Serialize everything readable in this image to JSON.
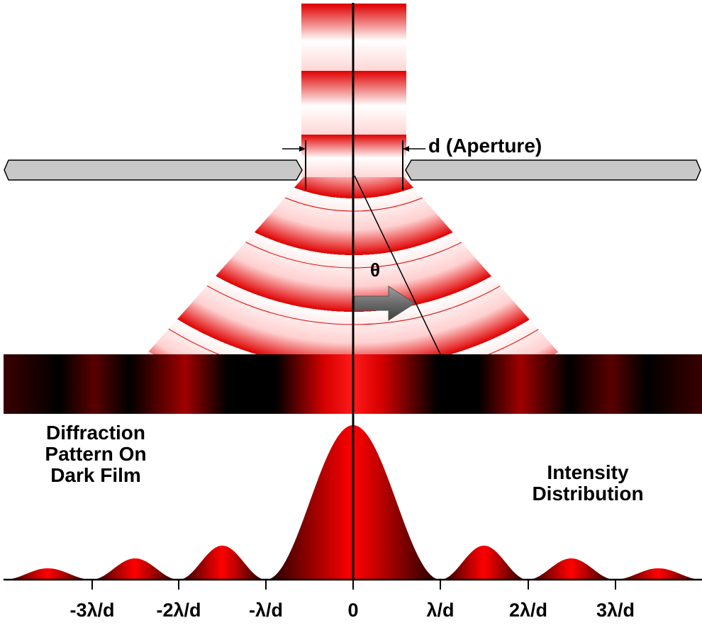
{
  "aperture_label": "d (Aperture)",
  "theta_label": "θ",
  "film_label_lines": [
    "Diffraction",
    "Pattern On",
    "Dark Film"
  ],
  "intensity_label_lines": [
    "Intensity",
    "Distribution"
  ],
  "axis_ticks": [
    "-3λ/d",
    "-2λ/d",
    "-λ/d",
    "0",
    "λ/d",
    "2λ/d",
    "3λ/d"
  ],
  "colors": {
    "wave_red": "#e00000",
    "wave_light": "#ffffff",
    "barrier_fill": "#c8c8c8",
    "arrow_gray": "#7a7a7a",
    "film_dark": "#000000"
  }
}
